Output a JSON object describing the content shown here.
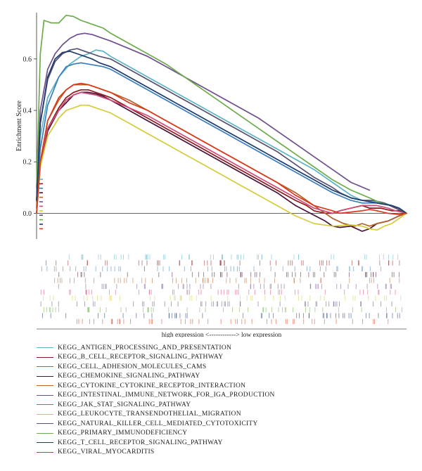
{
  "chart_data": {
    "type": "line",
    "ylabel": "Enrichment Score",
    "yticks": [
      "0.0",
      "0.2",
      "0.4",
      "0.6"
    ],
    "ylim": [
      -0.1,
      0.78
    ],
    "xlim": [
      0,
      100
    ],
    "barcode_caption": "high expression <------------> low expression",
    "series": [
      {
        "name": "KEGG_ANTIGEN_PROCESSING_AND_PRESENTATION",
        "color": "#5ab4c8",
        "x": [
          0,
          1,
          3,
          6,
          9,
          12,
          14,
          16,
          18,
          20,
          25,
          30,
          35,
          40,
          45,
          50,
          55,
          60,
          65,
          70,
          75,
          80,
          85,
          88,
          90,
          92,
          94,
          96,
          98,
          100
        ],
        "y": [
          0.05,
          0.3,
          0.45,
          0.53,
          0.58,
          0.61,
          0.62,
          0.635,
          0.63,
          0.61,
          0.57,
          0.53,
          0.49,
          0.45,
          0.41,
          0.37,
          0.33,
          0.29,
          0.25,
          0.21,
          0.17,
          0.12,
          0.07,
          0.05,
          0.05,
          0.045,
          0.04,
          0.03,
          0.015,
          0.0
        ]
      },
      {
        "name": "KEGG_B_CELL_RECEPTOR_SIGNALING_PATHWAY",
        "color": "#8b1a1a",
        "x": [
          0,
          1,
          3,
          6,
          8,
          10,
          12,
          14,
          16,
          18,
          20,
          25,
          30,
          35,
          40,
          45,
          50,
          55,
          60,
          65,
          70,
          73,
          75,
          78,
          80,
          82,
          85,
          88,
          90,
          93,
          96,
          98,
          100
        ],
        "y": [
          0.02,
          0.2,
          0.33,
          0.41,
          0.45,
          0.47,
          0.48,
          0.48,
          0.47,
          0.46,
          0.45,
          0.41,
          0.37,
          0.33,
          0.29,
          0.25,
          0.21,
          0.17,
          0.13,
          0.09,
          0.05,
          0.03,
          0.01,
          0.0,
          0.0,
          0.01,
          0.02,
          0.03,
          0.02,
          0.02,
          0.01,
          0.01,
          0.0
        ]
      },
      {
        "name": "KEGG_CELL_ADHESION_MOLECULES_CAMS",
        "color": "#3b7fbf",
        "x": [
          0,
          1,
          3,
          6,
          8,
          10,
          12,
          14,
          16,
          18,
          20,
          25,
          30,
          35,
          40,
          45,
          50,
          55,
          60,
          65,
          70,
          75,
          80,
          85,
          88,
          92,
          96,
          98,
          100
        ],
        "y": [
          0.05,
          0.25,
          0.42,
          0.53,
          0.57,
          0.58,
          0.585,
          0.58,
          0.575,
          0.57,
          0.56,
          0.52,
          0.48,
          0.44,
          0.4,
          0.36,
          0.32,
          0.28,
          0.24,
          0.2,
          0.16,
          0.12,
          0.08,
          0.05,
          0.04,
          0.04,
          0.03,
          0.02,
          0.0
        ]
      },
      {
        "name": "KEGG_CHEMOKINE_SIGNALING_PATHWAY",
        "color": "#4a1238",
        "x": [
          0,
          1,
          3,
          6,
          8,
          10,
          12,
          14,
          16,
          18,
          20,
          25,
          30,
          35,
          40,
          45,
          50,
          55,
          60,
          65,
          70,
          74,
          78,
          80,
          82,
          85,
          88,
          90,
          92,
          95,
          98,
          100
        ],
        "y": [
          0.0,
          0.18,
          0.32,
          0.4,
          0.43,
          0.46,
          0.47,
          0.47,
          0.465,
          0.455,
          0.44,
          0.4,
          0.36,
          0.32,
          0.28,
          0.24,
          0.2,
          0.16,
          0.12,
          0.08,
          0.03,
          0.0,
          -0.03,
          -0.05,
          -0.055,
          -0.05,
          -0.07,
          -0.06,
          -0.04,
          -0.03,
          -0.01,
          0.0
        ]
      },
      {
        "name": "KEGG_CYTOKINE_CYTOKINE_RECEPTOR_INTERACTION",
        "color": "#b0622a",
        "x": [
          0,
          1,
          3,
          6,
          8,
          10,
          12,
          14,
          16,
          18,
          20,
          25,
          30,
          35,
          40,
          45,
          50,
          55,
          60,
          65,
          70,
          75,
          80,
          83,
          86,
          88,
          90,
          92,
          95,
          98,
          100
        ],
        "y": [
          0.0,
          0.2,
          0.36,
          0.44,
          0.48,
          0.5,
          0.5,
          0.5,
          0.49,
          0.48,
          0.47,
          0.44,
          0.4,
          0.36,
          0.32,
          0.28,
          0.24,
          0.2,
          0.16,
          0.12,
          0.08,
          0.03,
          -0.02,
          -0.04,
          -0.05,
          -0.04,
          -0.05,
          -0.04,
          -0.03,
          -0.01,
          0.0
        ]
      },
      {
        "name": "KEGG_INTESTINAL_IMMUNE_NETWORK_FOR_IGA_PRODUCTION",
        "color": "#6e4f8e",
        "x": [
          0,
          1,
          3,
          5,
          7,
          9,
          11,
          13,
          15,
          17,
          20,
          25,
          30,
          35,
          40,
          45,
          50,
          55,
          60,
          65,
          70,
          75,
          80,
          85,
          90
        ],
        "y": [
          0.1,
          0.4,
          0.56,
          0.62,
          0.655,
          0.68,
          0.695,
          0.7,
          0.695,
          0.685,
          0.67,
          0.64,
          0.61,
          0.57,
          0.53,
          0.49,
          0.45,
          0.41,
          0.37,
          0.32,
          0.27,
          0.22,
          0.17,
          0.12,
          0.09
        ]
      },
      {
        "name": "KEGG_JAK_STAT_SIGNALING_PATHWAY",
        "color": "#d04a7a",
        "x": [
          0,
          1,
          3,
          6,
          8,
          10,
          12,
          14,
          16,
          18,
          20,
          25,
          30,
          35,
          40,
          45,
          50,
          55,
          60,
          65,
          70,
          75,
          80,
          82,
          85,
          88,
          90,
          92,
          95,
          97,
          100
        ],
        "y": [
          0.0,
          0.2,
          0.33,
          0.4,
          0.44,
          0.46,
          0.47,
          0.465,
          0.46,
          0.45,
          0.44,
          0.41,
          0.38,
          0.34,
          0.3,
          0.26,
          0.22,
          0.18,
          0.14,
          0.1,
          0.06,
          0.02,
          0.0,
          0.01,
          0.02,
          0.03,
          0.03,
          0.03,
          0.02,
          0.01,
          0.0
        ]
      },
      {
        "name": "KEGG_LEUKOCYTE_TRANSENDOTHELIAL_MIGRATION",
        "color": "#d4cc3a",
        "x": [
          0,
          1,
          3,
          6,
          8,
          10,
          12,
          14,
          16,
          18,
          20,
          25,
          30,
          35,
          40,
          45,
          50,
          55,
          60,
          65,
          70,
          75,
          80,
          85,
          88,
          90,
          92,
          94,
          96,
          98,
          100
        ],
        "y": [
          0.0,
          0.18,
          0.3,
          0.37,
          0.4,
          0.41,
          0.42,
          0.42,
          0.41,
          0.4,
          0.39,
          0.35,
          0.31,
          0.27,
          0.23,
          0.19,
          0.15,
          0.11,
          0.07,
          0.03,
          -0.01,
          -0.04,
          -0.05,
          -0.045,
          -0.05,
          -0.06,
          -0.065,
          -0.05,
          -0.04,
          -0.02,
          0.0
        ]
      },
      {
        "name": "KEGG_NATURAL_KILLER_CELL_MEDIATED_CYTOTOXICITY",
        "color": "#585070",
        "x": [
          0,
          1,
          3,
          5,
          7,
          9,
          11,
          13,
          15,
          17,
          20,
          25,
          30,
          35,
          40,
          45,
          50,
          55,
          60,
          65,
          70,
          75,
          80,
          82,
          85,
          88,
          91,
          94,
          97,
          100
        ],
        "y": [
          0.05,
          0.35,
          0.52,
          0.59,
          0.62,
          0.635,
          0.64,
          0.63,
          0.62,
          0.61,
          0.6,
          0.56,
          0.52,
          0.48,
          0.44,
          0.4,
          0.36,
          0.32,
          0.28,
          0.24,
          0.19,
          0.14,
          0.1,
          0.08,
          0.06,
          0.05,
          0.05,
          0.04,
          0.02,
          0.0
        ]
      },
      {
        "name": "KEGG_PRIMARY_IMMUNODEFICIENCY",
        "color": "#6cad4a",
        "x": [
          0,
          1,
          2,
          4,
          6,
          8,
          10,
          12,
          14,
          16,
          18,
          20,
          25,
          30,
          35,
          40,
          45,
          50,
          55,
          60,
          65,
          70,
          75,
          80,
          85,
          90,
          93,
          96,
          98,
          100
        ],
        "y": [
          0.1,
          0.62,
          0.75,
          0.74,
          0.74,
          0.77,
          0.765,
          0.75,
          0.74,
          0.73,
          0.72,
          0.7,
          0.66,
          0.62,
          0.58,
          0.53,
          0.48,
          0.43,
          0.38,
          0.33,
          0.28,
          0.23,
          0.18,
          0.13,
          0.09,
          0.06,
          0.04,
          0.03,
          0.02,
          0.0
        ]
      },
      {
        "name": "KEGG_T_CELL_RECEPTOR_SIGNALING_PATHWAY",
        "color": "#1c3a6b",
        "x": [
          0,
          1,
          3,
          5,
          7,
          9,
          11,
          13,
          15,
          17,
          20,
          25,
          30,
          35,
          40,
          45,
          50,
          55,
          60,
          65,
          70,
          75,
          80,
          85,
          88,
          92,
          96,
          98,
          100
        ],
        "y": [
          0.05,
          0.35,
          0.53,
          0.6,
          0.625,
          0.63,
          0.62,
          0.61,
          0.6,
          0.585,
          0.57,
          0.53,
          0.49,
          0.45,
          0.41,
          0.37,
          0.33,
          0.29,
          0.25,
          0.21,
          0.17,
          0.13,
          0.09,
          0.06,
          0.05,
          0.04,
          0.03,
          0.02,
          0.0
        ]
      },
      {
        "name": "KEGG_VIRAL_MYOCARDITIS",
        "color": "#d93a1a",
        "x": [
          0,
          1,
          3,
          6,
          8,
          10,
          12,
          14,
          16,
          18,
          20,
          25,
          30,
          35,
          40,
          45,
          50,
          55,
          60,
          65,
          70,
          75,
          80,
          82,
          85,
          88,
          90,
          92,
          95,
          98,
          100
        ],
        "y": [
          0.0,
          0.2,
          0.36,
          0.45,
          0.48,
          0.5,
          0.505,
          0.5,
          0.49,
          0.48,
          0.47,
          0.43,
          0.4,
          0.36,
          0.32,
          0.28,
          0.24,
          0.2,
          0.16,
          0.12,
          0.07,
          0.03,
          0.01,
          0.0,
          0.005,
          0.01,
          0.015,
          0.01,
          0.0,
          -0.005,
          0.0
        ]
      }
    ]
  }
}
